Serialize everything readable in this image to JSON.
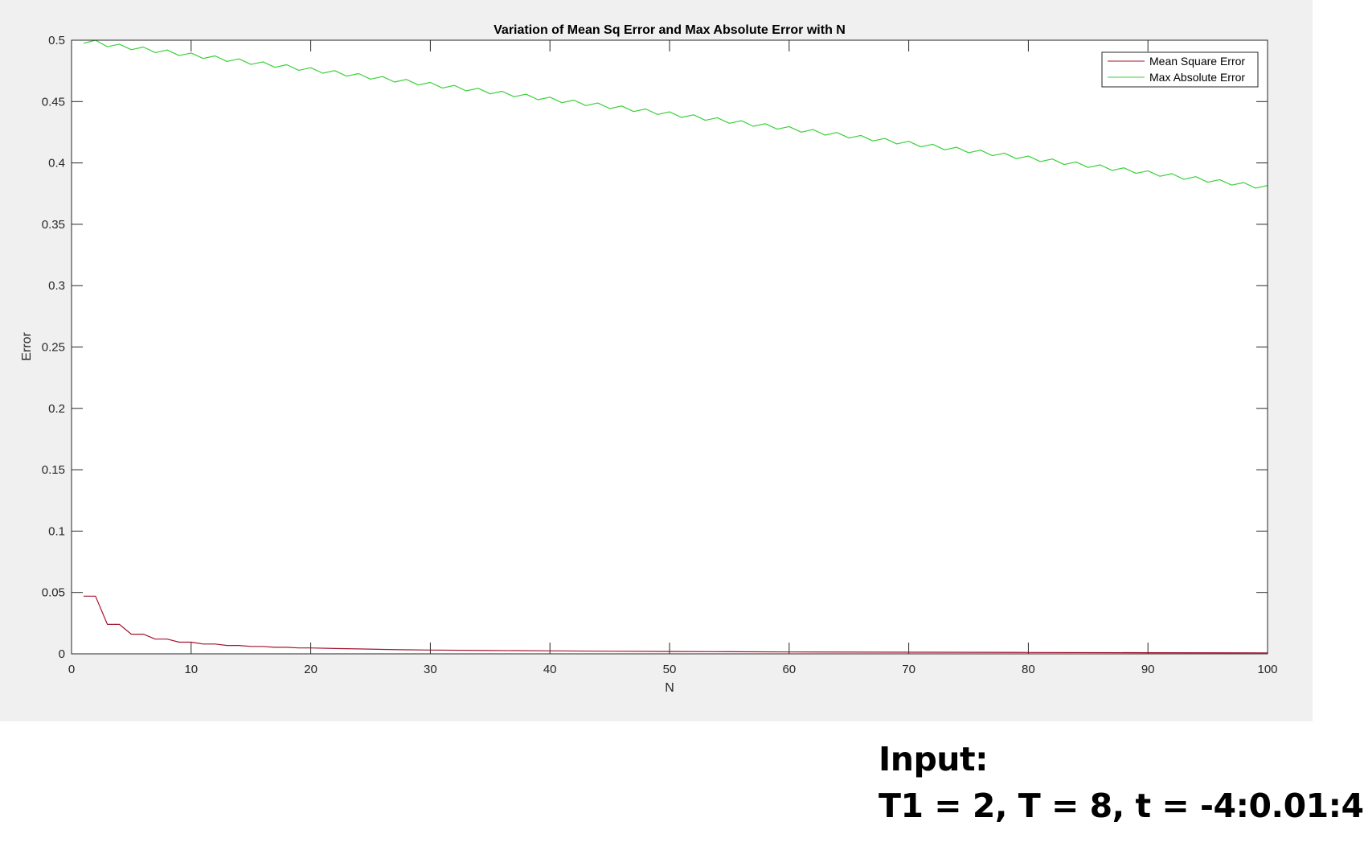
{
  "chart_data": {
    "type": "line",
    "title": "Variation of Mean Sq Error and Max Absolute Error with N",
    "xlabel": "N",
    "ylabel": "Error",
    "xlim": [
      0,
      100
    ],
    "ylim": [
      0,
      0.5
    ],
    "xticks": [
      "0",
      "10",
      "20",
      "30",
      "40",
      "50",
      "60",
      "70",
      "80",
      "90",
      "100"
    ],
    "yticks": [
      "0",
      "0.05",
      "0.1",
      "0.15",
      "0.2",
      "0.25",
      "0.3",
      "0.35",
      "0.4",
      "0.45",
      "0.5"
    ],
    "grid": false,
    "legend_position": "top-right",
    "series": [
      {
        "name": "Mean Square Error",
        "color": "#a2142f",
        "x": [
          1,
          2,
          3,
          4,
          5,
          6,
          7,
          8,
          9,
          10,
          11,
          12,
          13,
          14,
          15,
          16,
          17,
          18,
          19,
          20,
          22,
          24,
          26,
          28,
          30,
          35,
          40,
          45,
          50,
          55,
          60,
          70,
          80,
          90,
          100
        ],
        "values": [
          0.047,
          0.047,
          0.024,
          0.024,
          0.016,
          0.016,
          0.012,
          0.012,
          0.0095,
          0.0095,
          0.008,
          0.008,
          0.0068,
          0.0068,
          0.006,
          0.006,
          0.0053,
          0.0053,
          0.0048,
          0.0048,
          0.0043,
          0.004,
          0.0036,
          0.0033,
          0.0031,
          0.0027,
          0.0024,
          0.0021,
          0.0019,
          0.0017,
          0.0015,
          0.0013,
          0.0011,
          0.0009,
          0.0008
        ]
      },
      {
        "name": "Max Absolute Error",
        "color": "#39d039",
        "x": [
          1,
          2,
          3,
          4,
          5,
          6,
          7,
          8,
          9,
          10,
          11,
          12,
          13,
          14,
          15,
          16,
          17,
          18,
          19,
          20,
          21,
          22,
          23,
          24,
          25,
          26,
          27,
          28,
          29,
          30,
          31,
          32,
          33,
          34,
          35,
          36,
          37,
          38,
          39,
          40,
          41,
          42,
          43,
          44,
          45,
          46,
          47,
          48,
          49,
          50,
          51,
          52,
          53,
          54,
          55,
          56,
          57,
          58,
          59,
          60,
          61,
          62,
          63,
          64,
          65,
          66,
          67,
          68,
          69,
          70,
          71,
          72,
          73,
          74,
          75,
          76,
          77,
          78,
          79,
          80,
          81,
          82,
          83,
          84,
          85,
          86,
          87,
          88,
          89,
          90,
          91,
          92,
          93,
          94,
          95,
          96,
          97,
          98,
          99,
          100
        ],
        "values": [
          0.4975,
          0.5,
          0.4947,
          0.4968,
          0.4923,
          0.4944,
          0.4899,
          0.492,
          0.4875,
          0.4896,
          0.4851,
          0.4872,
          0.4827,
          0.4848,
          0.4803,
          0.4824,
          0.4779,
          0.48,
          0.4755,
          0.4776,
          0.4731,
          0.4752,
          0.4707,
          0.4728,
          0.4683,
          0.4704,
          0.4659,
          0.468,
          0.4635,
          0.4656,
          0.4611,
          0.4632,
          0.4587,
          0.4608,
          0.4563,
          0.4584,
          0.4539,
          0.456,
          0.4515,
          0.4536,
          0.4491,
          0.4512,
          0.4467,
          0.4488,
          0.4443,
          0.4464,
          0.4419,
          0.444,
          0.4395,
          0.4416,
          0.4371,
          0.4392,
          0.4347,
          0.4368,
          0.4323,
          0.4344,
          0.4299,
          0.432,
          0.4275,
          0.4296,
          0.4251,
          0.4272,
          0.4227,
          0.4248,
          0.4203,
          0.4224,
          0.4179,
          0.42,
          0.4155,
          0.4176,
          0.4131,
          0.4152,
          0.4107,
          0.4128,
          0.4083,
          0.4104,
          0.4059,
          0.408,
          0.4035,
          0.4056,
          0.4011,
          0.4032,
          0.3987,
          0.4008,
          0.3963,
          0.3984,
          0.3939,
          0.396,
          0.3915,
          0.3936,
          0.3891,
          0.3912,
          0.3867,
          0.3888,
          0.3843,
          0.3864,
          0.3819,
          0.384,
          0.3795,
          0.3816
        ]
      }
    ]
  },
  "annotation": {
    "line1": "Input:",
    "line2": "T1 = 2, T = 8, t = -4:0.01:4"
  }
}
